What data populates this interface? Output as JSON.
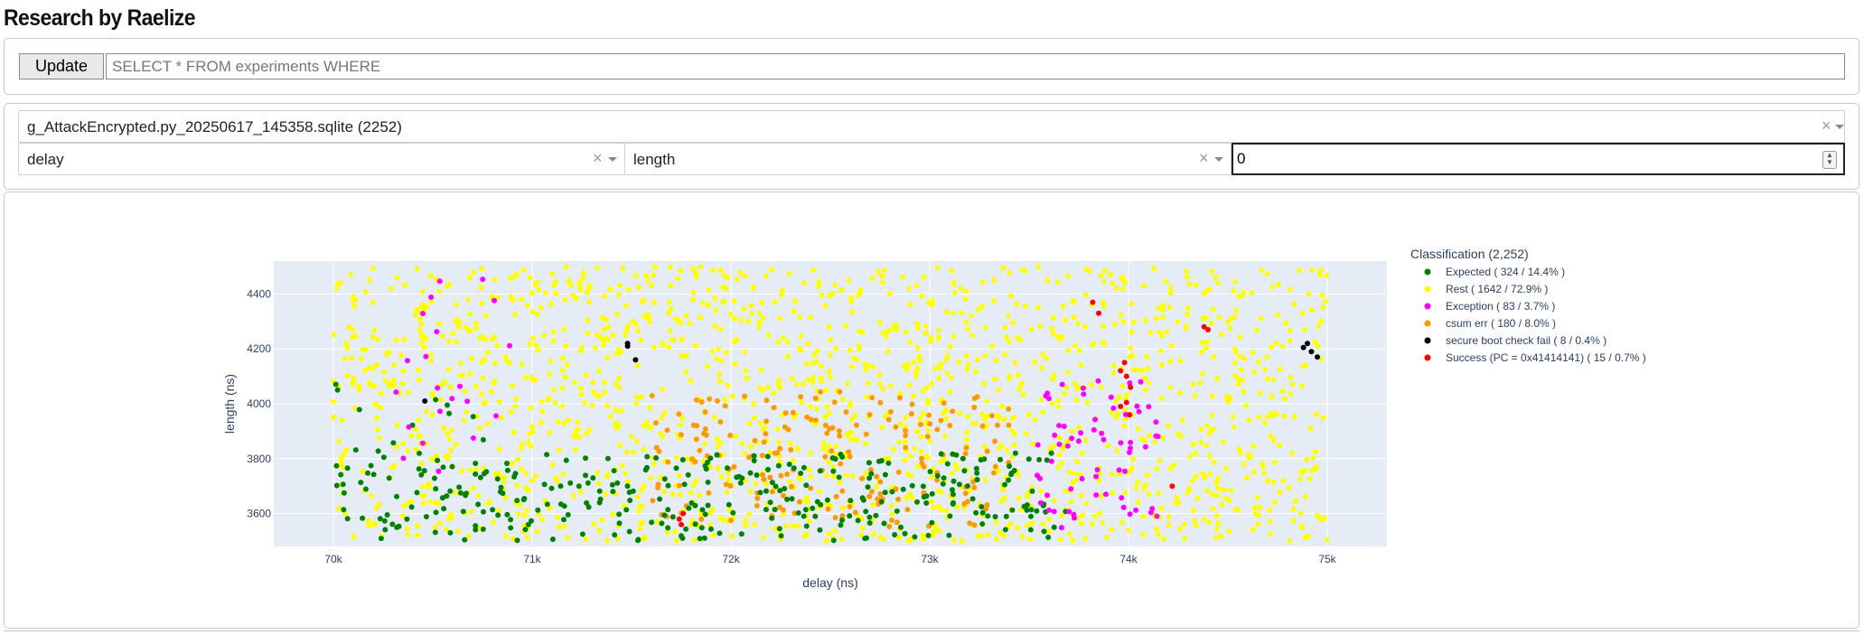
{
  "app_title": "Research by Raelize",
  "query": {
    "button_label": "Update",
    "placeholder": "SELECT * FROM experiments WHERE"
  },
  "selectors": {
    "database": "g_AttackEncrypted.py_20250617_145358.sqlite (2252)",
    "x_field": "delay",
    "y_field": "length",
    "number_value": "0",
    "clear_symbol": "×"
  },
  "chart_data": {
    "type": "scatter",
    "xlabel": "delay (ns)",
    "ylabel": "length (ns)",
    "xlim": [
      69700,
      75300
    ],
    "ylim": [
      3480,
      4520
    ],
    "x_ticks": [
      70000,
      71000,
      72000,
      73000,
      74000,
      75000
    ],
    "x_tick_labels": [
      "70k",
      "71k",
      "72k",
      "73k",
      "74k",
      "75k"
    ],
    "y_ticks": [
      3600,
      3800,
      4000,
      4200,
      4400
    ],
    "y_tick_labels": [
      "3600",
      "3800",
      "4000",
      "4200",
      "4400"
    ],
    "grid": true,
    "plot_bg": "#e5ecf6",
    "legend_title": "Classification (2,252)",
    "legend_position": "right",
    "series": [
      {
        "name": "Expected ( 324 / 14.4% )",
        "color": "#008000",
        "count": 324,
        "x_range": [
          70000,
          73700
        ],
        "y_range": [
          3500,
          3820
        ],
        "y_ext": 4080
      },
      {
        "name": "Rest ( 1642 / 72.9% )",
        "color": "#ffff00",
        "count": 1642,
        "x_range": [
          70000,
          75000
        ],
        "y_range": [
          3500,
          4500
        ]
      },
      {
        "name": "Exception ( 83 / 3.7% )",
        "color": "#ff00ff",
        "count": 83,
        "x_range": [
          73500,
          74150
        ],
        "y_range": [
          3540,
          4090
        ],
        "x_range_2": [
          70300,
          70900
        ],
        "y_range_2": [
          3650,
          4480
        ]
      },
      {
        "name": "csum err ( 180 / 8.0% )",
        "color": "#ff9900",
        "count": 180,
        "x_range": [
          71600,
          73400
        ],
        "y_range": [
          3550,
          4050
        ]
      },
      {
        "name": "secure boot check fail ( 8 / 0.4% )",
        "color": "#000000",
        "count": 8,
        "points": [
          [
            71480,
            4220
          ],
          [
            71480,
            4210
          ],
          [
            71520,
            4160
          ],
          [
            74900,
            4220
          ],
          [
            74920,
            4190
          ],
          [
            74950,
            4170
          ],
          [
            74880,
            4205
          ],
          [
            70460,
            4010
          ]
        ]
      },
      {
        "name": "Success (PC = 0x41414141) ( 15 / 0.7% )",
        "color": "#ff0000",
        "count": 15,
        "points": [
          [
            71740,
            3580
          ],
          [
            71750,
            3560
          ],
          [
            71760,
            3600
          ],
          [
            73820,
            4370
          ],
          [
            73850,
            4330
          ],
          [
            73960,
            4120
          ],
          [
            73980,
            4150
          ],
          [
            73990,
            4100
          ],
          [
            74010,
            4060
          ],
          [
            73960,
            3990
          ],
          [
            74220,
            3700
          ],
          [
            74380,
            4280
          ],
          [
            74400,
            4270
          ],
          [
            73990,
            4005
          ],
          [
            74005,
            3960
          ]
        ]
      }
    ]
  }
}
